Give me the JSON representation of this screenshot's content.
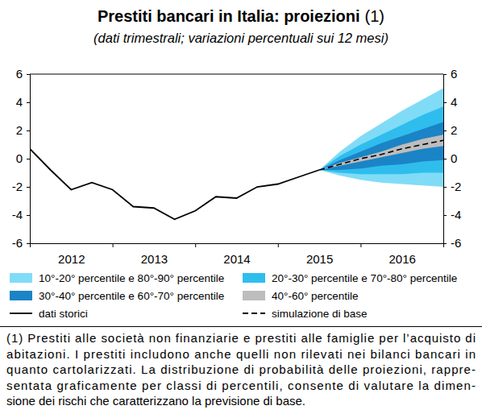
{
  "chart_data": {
    "type": "fan",
    "title": "Prestiti bancari in Italia: proiezioni",
    "title_note": "(1)",
    "subtitle": "(dati trimestrali; variazioni percentuali sui 12 mesi)",
    "xlim": [
      2012,
      2017
    ],
    "xticks": [
      2012,
      2013,
      2014,
      2015,
      2016
    ],
    "ylim": [
      -6,
      6
    ],
    "yticks": [
      -6,
      -4,
      -2,
      0,
      2,
      4,
      6
    ],
    "grid": false,
    "legend": "bottom",
    "series": [
      {
        "name": "10°-20° percentile e 80°-90° percentile",
        "type": "band",
        "color": "#80dcf6",
        "x": [
          2015.5,
          2015.75,
          2016,
          2016.25,
          2016.5,
          2016.75,
          2017
        ],
        "low": [
          -0.8,
          -1.2,
          -1.5,
          -1.7,
          -1.8,
          -1.9,
          -2.0
        ],
        "high": [
          -0.8,
          0.5,
          1.6,
          2.5,
          3.4,
          4.2,
          5.0
        ]
      },
      {
        "name": "20°-30° percentile e 70°-80° percentile",
        "type": "band",
        "color": "#2fbdee",
        "x": [
          2015.5,
          2015.75,
          2016,
          2016.25,
          2016.5,
          2016.75,
          2017
        ],
        "low": [
          -0.8,
          -1.0,
          -1.1,
          -1.1,
          -1.1,
          -1.0,
          -1.0
        ],
        "high": [
          -0.8,
          0.2,
          1.0,
          1.7,
          2.4,
          3.1,
          3.7
        ]
      },
      {
        "name": "30°-40° percentile e 60°-70° percentile",
        "type": "band",
        "color": "#1b84c6",
        "x": [
          2015.5,
          2015.75,
          2016,
          2016.25,
          2016.5,
          2016.75,
          2017
        ],
        "low": [
          -0.8,
          -0.8,
          -0.7,
          -0.5,
          -0.4,
          -0.2,
          -0.1
        ],
        "high": [
          -0.8,
          -0.1,
          0.5,
          1.1,
          1.6,
          2.1,
          2.6
        ]
      },
      {
        "name": "40°-60° percentile",
        "type": "band",
        "color": "#bdbdbd",
        "x": [
          2015.5,
          2015.75,
          2016,
          2016.25,
          2016.5,
          2016.75,
          2017
        ],
        "low": [
          -0.8,
          -0.5,
          -0.2,
          0.1,
          0.4,
          0.7,
          0.9
        ],
        "high": [
          -0.8,
          -0.3,
          0.1,
          0.5,
          1.0,
          1.4,
          1.7
        ]
      },
      {
        "name": "dati storici",
        "type": "line",
        "line_style": "solid",
        "color": "#000000",
        "x": [
          2012,
          2012.25,
          2012.5,
          2012.75,
          2013,
          2013.25,
          2013.5,
          2013.75,
          2014,
          2014.25,
          2014.5,
          2014.75,
          2015,
          2015.25,
          2015.5
        ],
        "values": [
          0.7,
          -0.8,
          -2.2,
          -1.7,
          -2.2,
          -3.4,
          -3.5,
          -4.3,
          -3.7,
          -2.7,
          -2.8,
          -2.0,
          -1.8,
          -1.3,
          -0.8
        ]
      },
      {
        "name": "simulazione di base",
        "type": "line",
        "line_style": "dashed",
        "color": "#000000",
        "x": [
          2015.5,
          2015.75,
          2016,
          2016.25,
          2016.5,
          2016.75,
          2017
        ],
        "values": [
          -0.8,
          -0.4,
          0.0,
          0.3,
          0.7,
          1.0,
          1.3
        ]
      }
    ],
    "note": [
      "(1) Prestiti alle società non finanziarie e prestiti alle famiglie per l’acquisto di",
      "abitazioni. I prestiti includono anche quelli non rilevati nei bilanci bancari in",
      "quanto cartolarizzati. La distribuzione di probabilità delle proiezioni, rappre-",
      "sentata graficamente per classi di percentili, consente di valutare la dimen-",
      "sione dei rischi che caratterizzano la previsione di base."
    ]
  }
}
